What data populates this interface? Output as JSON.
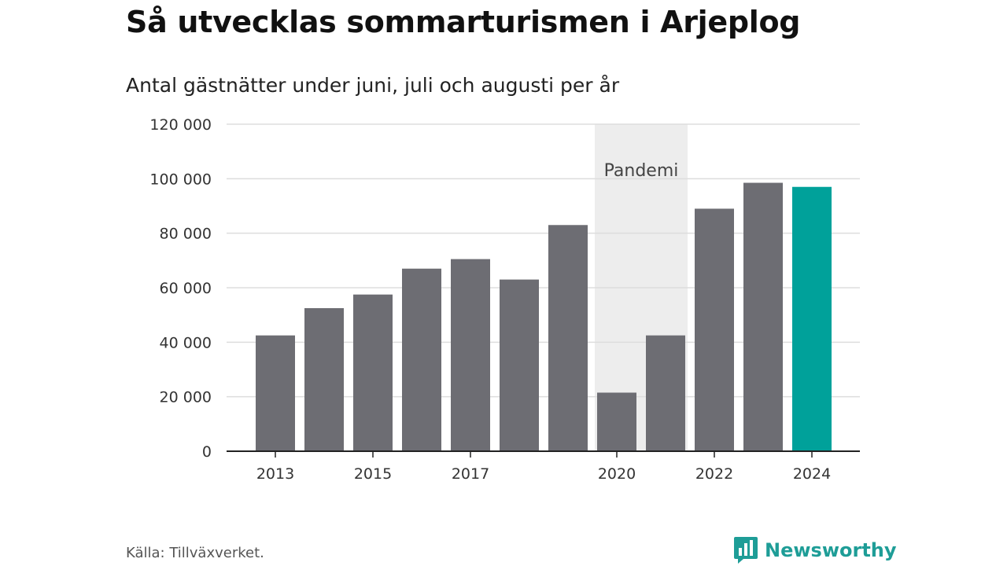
{
  "chart_data": {
    "type": "bar",
    "title": "Så utvecklas sommarturismen i Arjeplog",
    "subtitle": "Antal gästnätter under juni, juli och augusti per år",
    "categories": [
      "2013",
      "2014",
      "2015",
      "2016",
      "2017",
      "2018",
      "2019",
      "2020",
      "2021",
      "2022",
      "2023",
      "2024"
    ],
    "values": [
      42500,
      52500,
      57500,
      67000,
      70500,
      63000,
      83000,
      21500,
      42500,
      89000,
      98500,
      97000
    ],
    "x_tick_labels": [
      "2013",
      "2015",
      "2017",
      "2020",
      "2022",
      "2024"
    ],
    "y_ticks": [
      0,
      20000,
      40000,
      60000,
      80000,
      100000,
      120000
    ],
    "y_tick_labels": [
      "0",
      "20 000",
      "40 000",
      "60 000",
      "80 000",
      "100 000",
      "120 000"
    ],
    "ylim": [
      0,
      120000
    ],
    "grid": true,
    "highlight_category": "2024",
    "bar_color": "#6d6d73",
    "highlight_color": "#00a19a",
    "annotation": {
      "label": "Pandemi",
      "from": "2020",
      "to": "2021",
      "color": "#ededed"
    }
  },
  "source": "Källa: Tillväxverket.",
  "brand": {
    "name": "Newsworthy",
    "icon": "newsworthy-logo-icon",
    "color": "#1e9d97"
  }
}
